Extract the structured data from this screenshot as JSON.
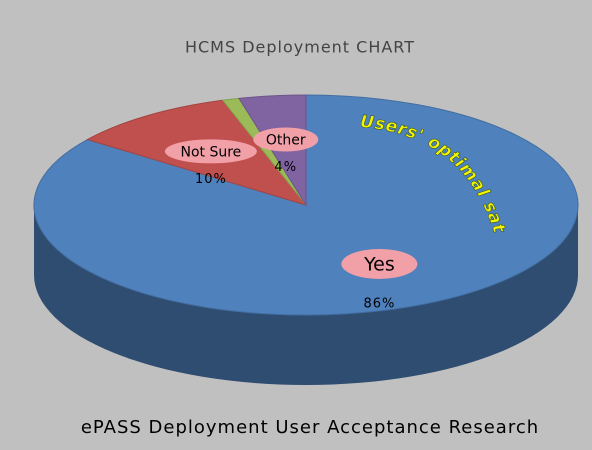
{
  "chart_data": {
    "type": "pie3d",
    "title": "HCMS Deployment CHART",
    "subtitle": "ePASS Deployment User Acceptance Research",
    "annotation": "Users' optimal satisfaction Index",
    "categories": [
      "Yes",
      "Not Sure",
      null,
      "Other"
    ],
    "values": [
      86,
      10,
      1,
      4
    ],
    "value_labels": [
      "86%",
      "10%",
      null,
      "4%"
    ],
    "colors": [
      "#4f81bd",
      "#c0504d",
      "#9bbb59",
      "#8064a2"
    ]
  }
}
